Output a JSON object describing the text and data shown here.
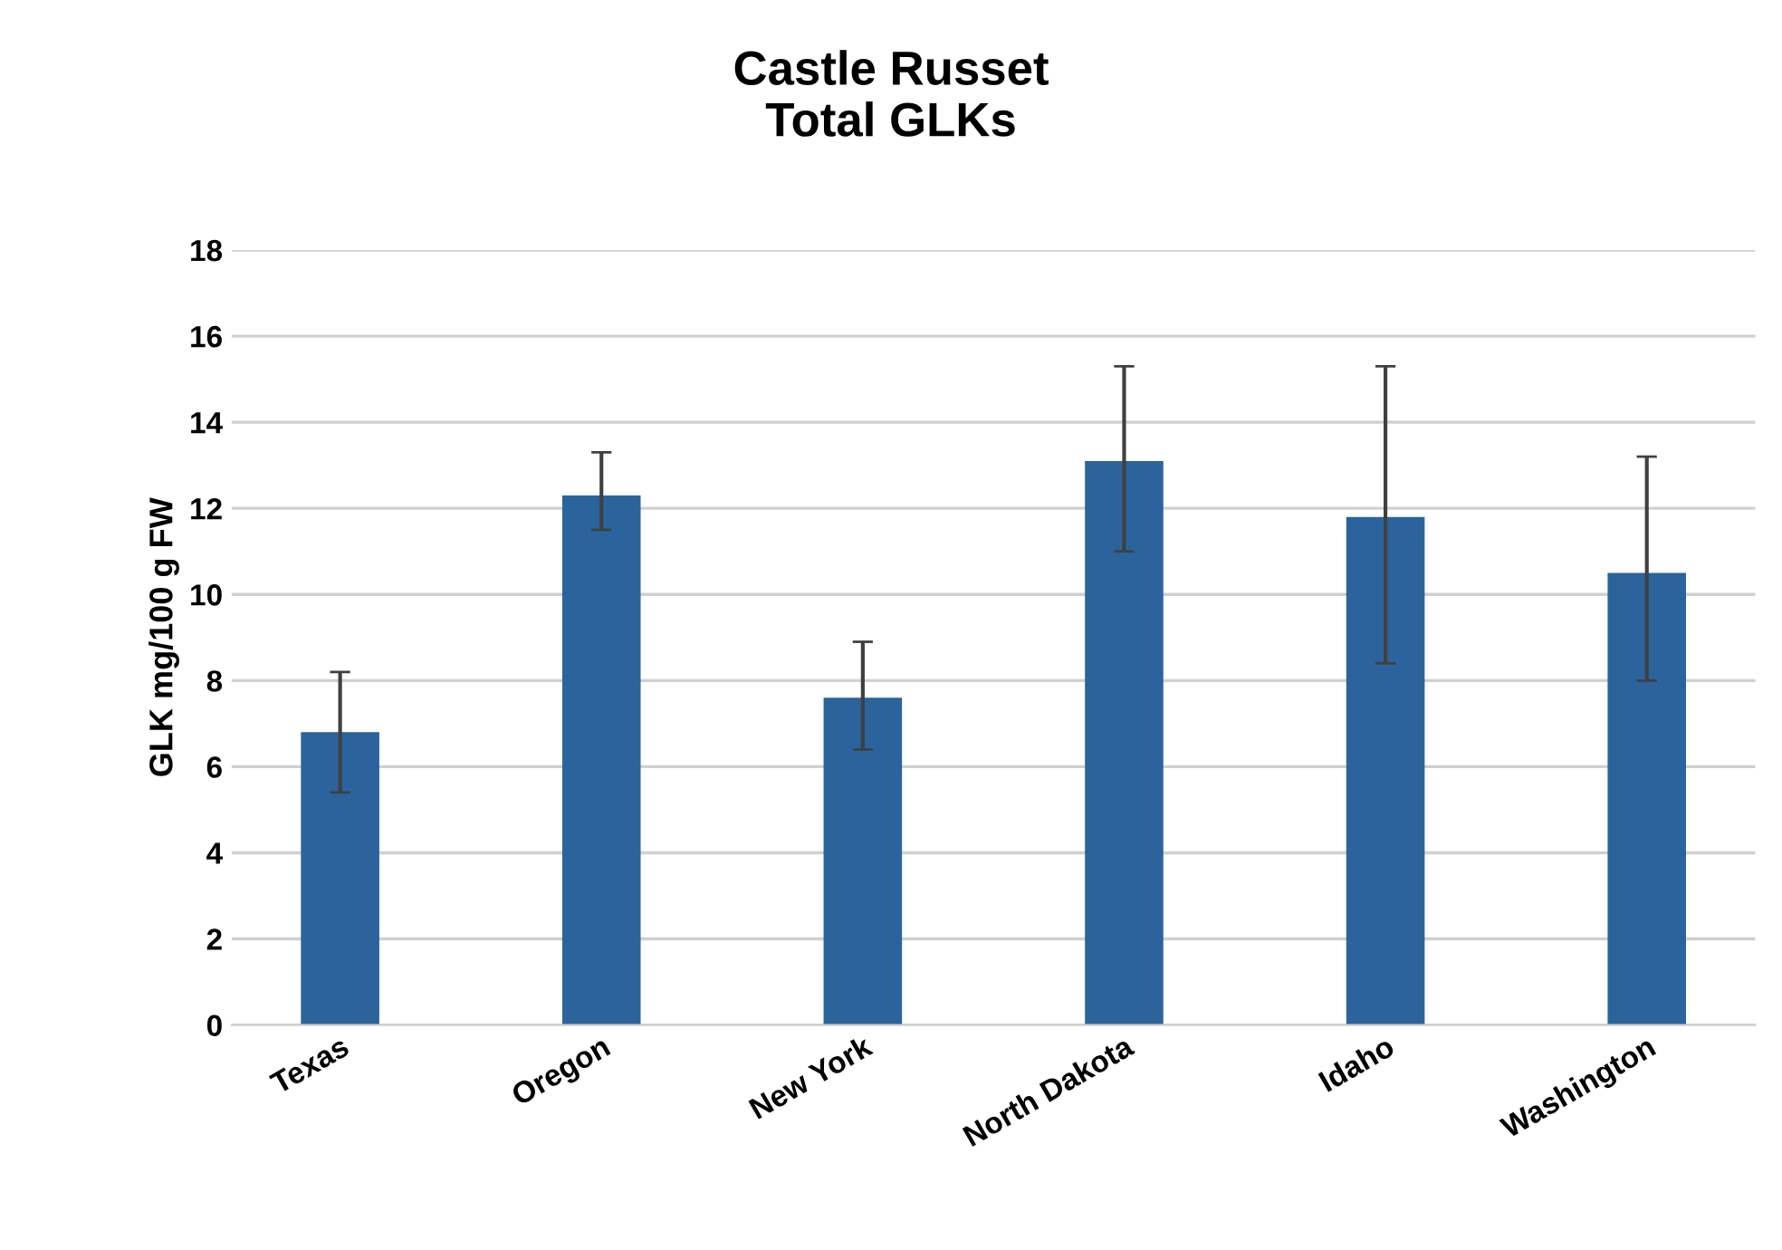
{
  "chart_data": {
    "type": "bar",
    "title": "Castle Russet\nTotal GLKs",
    "ylabel": "GLK mg/100 g FW",
    "categories": [
      "Texas",
      "Oregon",
      "New York",
      "North Dakota",
      "Idaho",
      "Washington"
    ],
    "values": [
      6.8,
      12.3,
      7.6,
      13.1,
      11.8,
      10.5
    ],
    "errors": [
      [
        5.4,
        8.2
      ],
      [
        11.5,
        13.3
      ],
      [
        6.4,
        8.9
      ],
      [
        11.0,
        15.3
      ],
      [
        8.4,
        15.3
      ],
      [
        8.0,
        13.2
      ]
    ],
    "color": "#2b649c",
    "ylim": [
      0,
      18
    ],
    "yticks": [
      0,
      2,
      4,
      6,
      8,
      10,
      12,
      14,
      16,
      18
    ],
    "grid": "y"
  }
}
